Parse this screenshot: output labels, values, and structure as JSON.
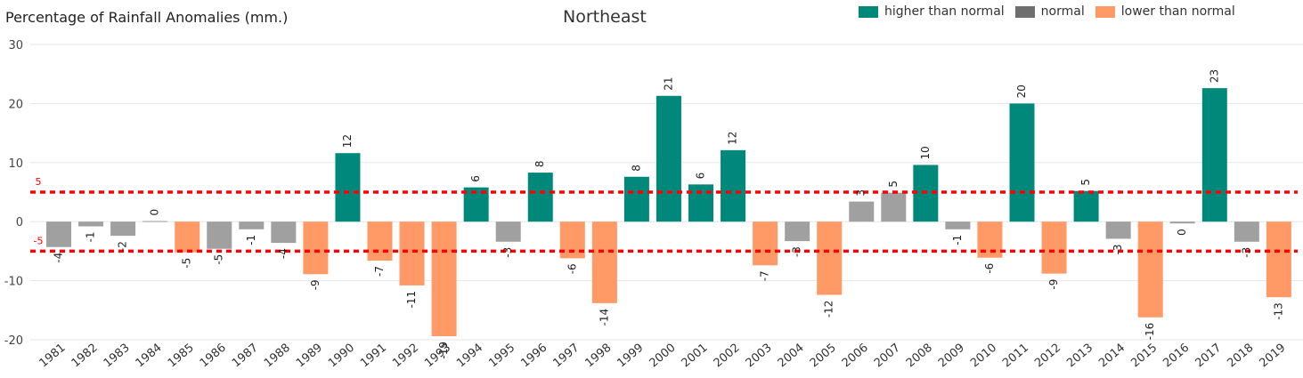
{
  "chart_data": {
    "type": "bar",
    "title": "Northeast",
    "ylabel": "Percentage of Rainfall Anomalies (mm.)",
    "xlabel": "",
    "ylim": [
      -20,
      30
    ],
    "yticks": [
      -20,
      -10,
      0,
      10,
      20,
      30
    ],
    "grid": true,
    "legend_position": "top-right",
    "legend": [
      {
        "name": "higher than normal",
        "color": "#00897b"
      },
      {
        "name": "normal",
        "color": "#6e6e6e"
      },
      {
        "name": "lower than normal",
        "color": "#ff9966"
      }
    ],
    "bar_colors": {
      "higher": "#00897b",
      "normal": "#a0a0a0",
      "lower": "#ff9966"
    },
    "thresholds": [
      {
        "value": 5,
        "label": "5",
        "color": "#ff0000"
      },
      {
        "value": -5,
        "label": "-5",
        "color": "#ff0000"
      }
    ],
    "categories": [
      "1981",
      "1982",
      "1983",
      "1984",
      "1985",
      "1986",
      "1987",
      "1988",
      "1989",
      "1990",
      "1991",
      "1992",
      "1993",
      "1994",
      "1995",
      "1996",
      "1997",
      "1998",
      "1999",
      "2000",
      "2001",
      "2002",
      "2003",
      "2004",
      "2005",
      "2006",
      "2007",
      "2008",
      "2009",
      "2010",
      "2011",
      "2012",
      "2013",
      "2014",
      "2015",
      "2016",
      "2017",
      "2018",
      "2019"
    ],
    "values": [
      -4.3,
      -0.8,
      -2.4,
      0.1,
      -5.2,
      -4.6,
      -1.3,
      -3.6,
      -8.9,
      11.6,
      -6.6,
      -10.8,
      -19.4,
      5.8,
      -3.4,
      8.3,
      -6.2,
      -13.8,
      7.6,
      21.3,
      6.3,
      12.1,
      -7.4,
      -3.3,
      -12.4,
      3.4,
      4.9,
      9.6,
      -1.3,
      -6.1,
      20.0,
      -8.8,
      5.2,
      -2.9,
      -16.2,
      -0.3,
      22.6,
      -3.4,
      -12.8
    ],
    "data_labels": [
      "-4",
      "-1",
      "-2",
      "0",
      "-5",
      "-5",
      "-1",
      "-4",
      "-9",
      "12",
      "-7",
      "-11",
      "-19",
      "6",
      "-3",
      "8",
      "-6",
      "-14",
      "8",
      "21",
      "6",
      "12",
      "-7",
      "-3",
      "-12",
      "3",
      "5",
      "10",
      "-1",
      "-6",
      "20",
      "-9",
      "5",
      "-3",
      "-16",
      "0",
      "23",
      "-3",
      "-13"
    ],
    "classes": [
      "normal",
      "normal",
      "normal",
      "normal",
      "lower",
      "normal",
      "normal",
      "normal",
      "lower",
      "higher",
      "lower",
      "lower",
      "lower",
      "higher",
      "normal",
      "higher",
      "lower",
      "lower",
      "higher",
      "higher",
      "higher",
      "higher",
      "lower",
      "normal",
      "lower",
      "normal",
      "normal",
      "higher",
      "normal",
      "lower",
      "higher",
      "lower",
      "higher",
      "normal",
      "lower",
      "normal",
      "higher",
      "normal",
      "lower"
    ]
  }
}
